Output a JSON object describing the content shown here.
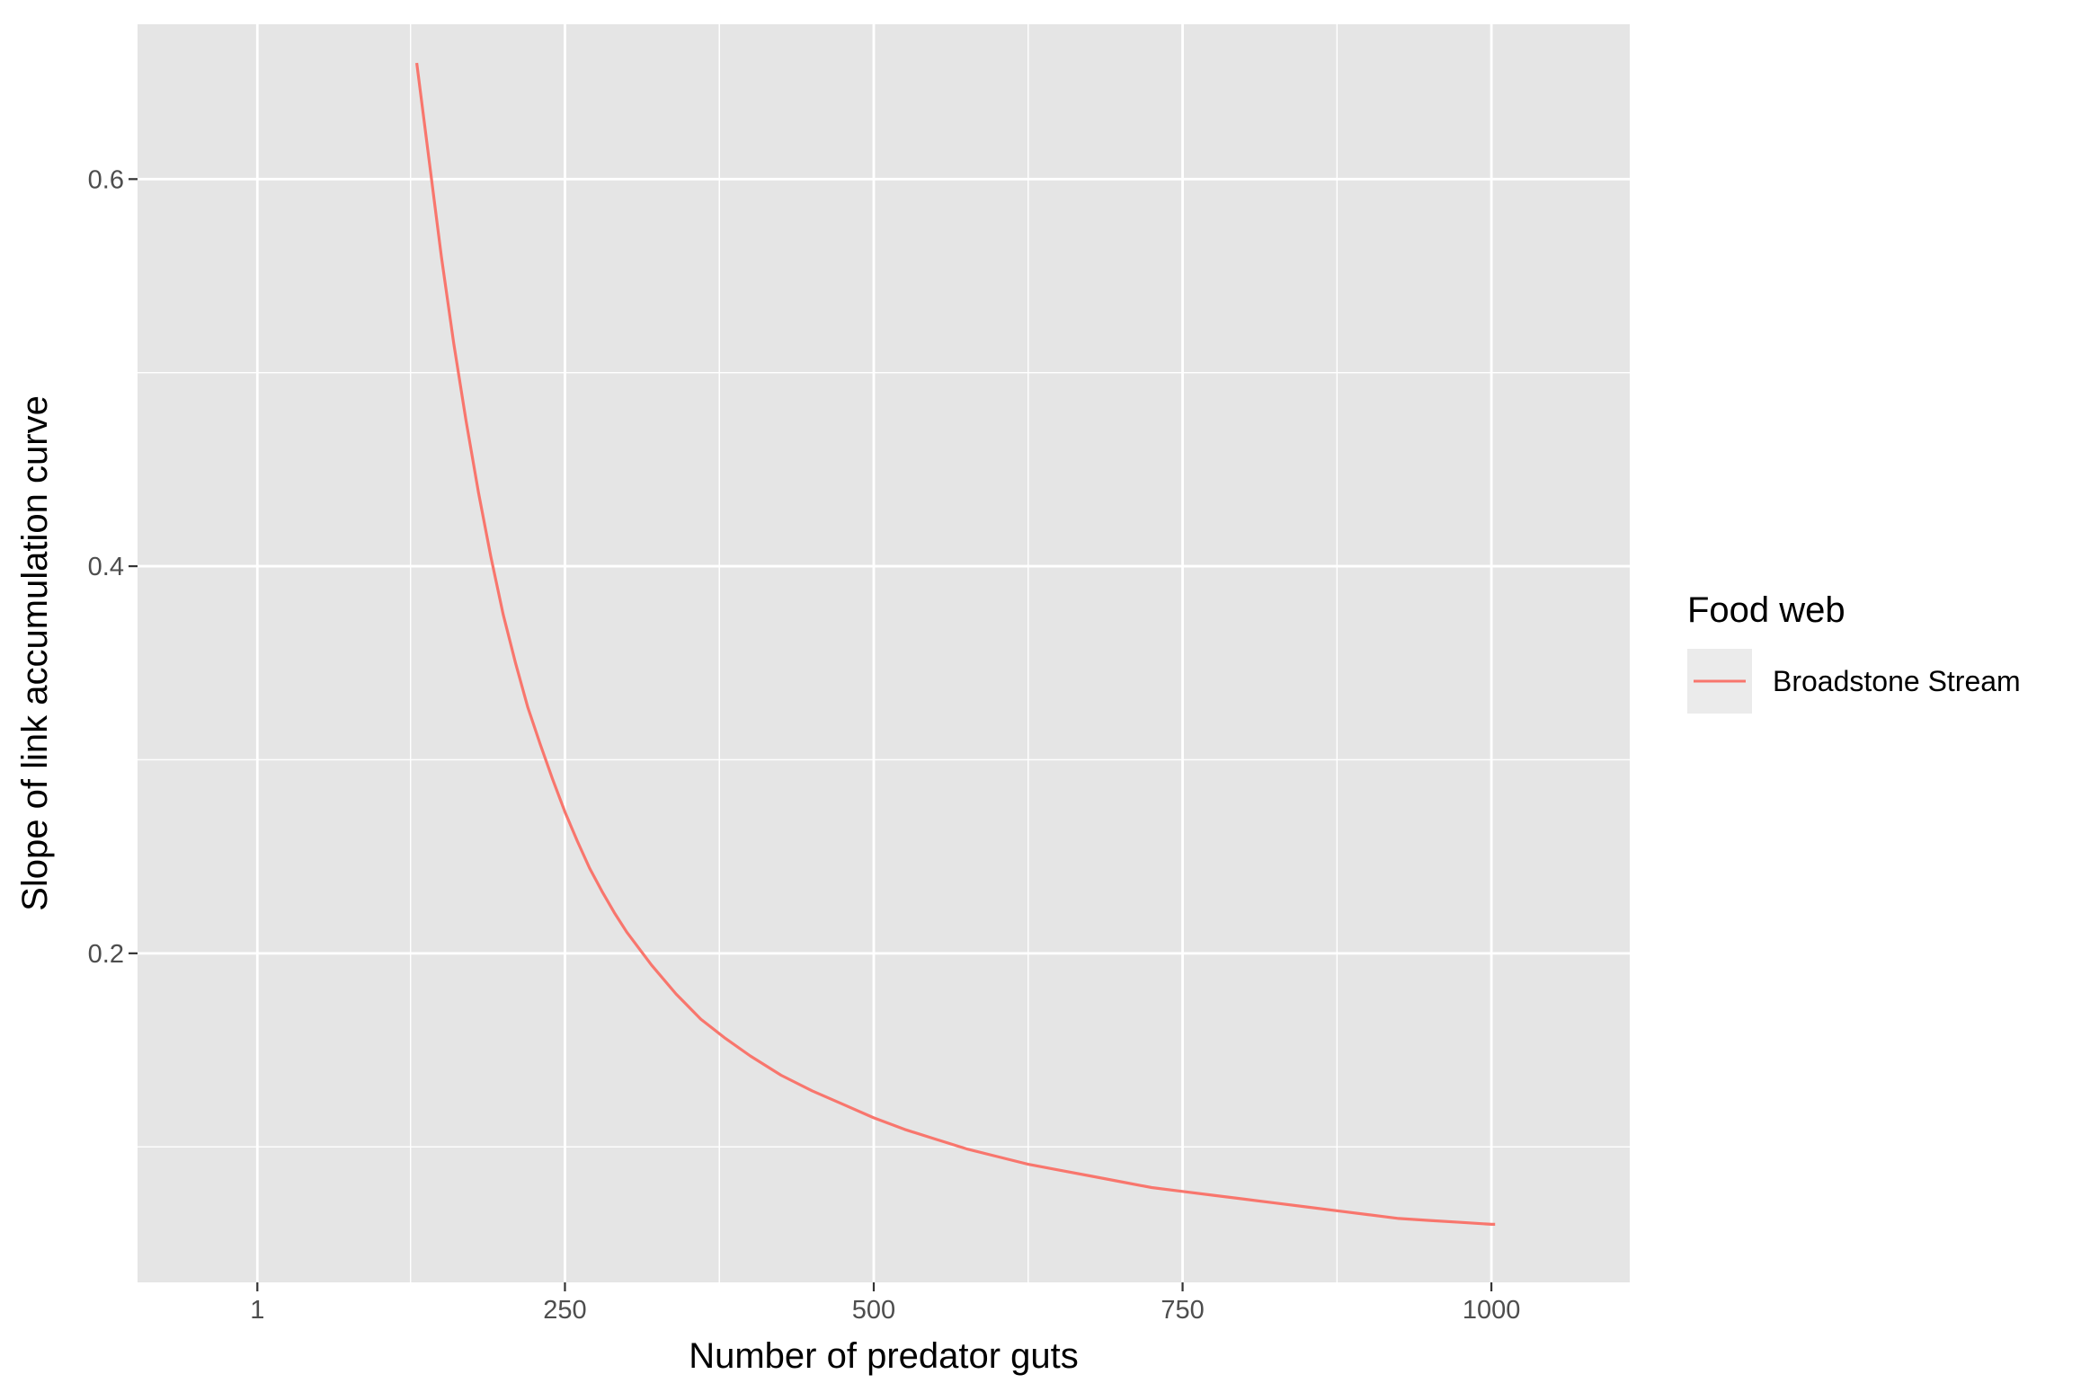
{
  "chart_data": {
    "type": "line",
    "title": "",
    "xlabel": "Number of predator guts",
    "ylabel": "Slope of link accumulation curve",
    "xlim": [
      -96,
      1112
    ],
    "ylim": [
      0.03,
      0.68
    ],
    "x_ticks": [
      1,
      250,
      500,
      750,
      1000
    ],
    "x_tick_labels": [
      "1",
      "250",
      "500",
      "750",
      "1000"
    ],
    "x_minor_ticks": [
      125,
      375,
      625,
      875
    ],
    "y_ticks": [
      0.2,
      0.4,
      0.6
    ],
    "y_tick_labels": [
      "0.2",
      "0.4",
      "0.6"
    ],
    "y_minor_ticks": [
      0.1,
      0.3,
      0.5
    ],
    "grid": true,
    "panel_background": "#e5e5e5",
    "grid_color": "#ffffff",
    "legend": {
      "title": "Food web",
      "position": "right"
    },
    "series": [
      {
        "name": "Broadstone Stream",
        "color": "#f8766d",
        "x": [
          130,
          140,
          150,
          160,
          170,
          180,
          190,
          200,
          210,
          220,
          230,
          240,
          250,
          260,
          270,
          280,
          290,
          300,
          320,
          340,
          360,
          380,
          400,
          425,
          450,
          475,
          500,
          525,
          550,
          575,
          600,
          625,
          650,
          675,
          700,
          725,
          750,
          775,
          800,
          825,
          850,
          875,
          900,
          925,
          950,
          975,
          1000,
          1003
        ],
        "y": [
          0.66,
          0.61,
          0.56,
          0.515,
          0.475,
          0.438,
          0.405,
          0.375,
          0.35,
          0.327,
          0.308,
          0.29,
          0.273,
          0.258,
          0.244,
          0.232,
          0.221,
          0.211,
          0.194,
          0.179,
          0.166,
          0.156,
          0.147,
          0.137,
          0.129,
          0.122,
          0.115,
          0.109,
          0.104,
          0.099,
          0.095,
          0.091,
          0.088,
          0.085,
          0.082,
          0.079,
          0.077,
          0.075,
          0.073,
          0.071,
          0.069,
          0.067,
          0.065,
          0.063,
          0.062,
          0.061,
          0.06,
          0.06
        ]
      }
    ]
  }
}
